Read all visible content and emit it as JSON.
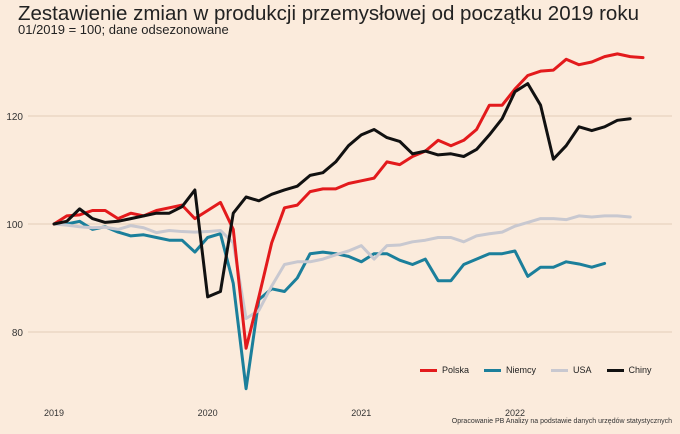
{
  "title": "Zestawienie zmian w produkcji przemysłowej od początku 2019 roku",
  "subtitle": "01/2019 = 100; dane odsezonowane",
  "source": "Opracowanie PB Analizy na podstawie danych urzędów statystycznych",
  "chart_data": {
    "type": "line",
    "xlabel": "",
    "ylabel": "",
    "ylim": [
      64,
      134
    ],
    "y_ticks": [
      80,
      100,
      120
    ],
    "x_ticks": [
      {
        "label": "2019",
        "index": 0
      },
      {
        "label": "2020",
        "index": 12
      },
      {
        "label": "2021",
        "index": 24
      },
      {
        "label": "2022",
        "index": 36
      }
    ],
    "grid": "horizontal",
    "legend_position": "bottom-right",
    "x": [
      "01/2019",
      "02/2019",
      "03/2019",
      "04/2019",
      "05/2019",
      "06/2019",
      "07/2019",
      "08/2019",
      "09/2019",
      "10/2019",
      "11/2019",
      "12/2019",
      "01/2020",
      "02/2020",
      "03/2020",
      "04/2020",
      "05/2020",
      "06/2020",
      "07/2020",
      "08/2020",
      "09/2020",
      "10/2020",
      "11/2020",
      "12/2020",
      "01/2021",
      "02/2021",
      "03/2021",
      "04/2021",
      "05/2021",
      "06/2021",
      "07/2021",
      "08/2021",
      "09/2021",
      "10/2021",
      "11/2021",
      "12/2021",
      "01/2022",
      "02/2022",
      "03/2022",
      "04/2022",
      "05/2022",
      "06/2022",
      "07/2022",
      "08/2022",
      "09/2022",
      "10/2022",
      "11/2022"
    ],
    "series": [
      {
        "name": "Polska",
        "color": "#e31a1c",
        "values": [
          100,
          101.5,
          101.7,
          102.5,
          102.5,
          101,
          102,
          101.5,
          102.5,
          103,
          103.5,
          101,
          102.5,
          104,
          99,
          77,
          86.5,
          96.5,
          103,
          103.5,
          106,
          106.5,
          106.5,
          107.5,
          108,
          108.5,
          111.5,
          111,
          112.5,
          113.5,
          115.5,
          114.5,
          115.5,
          117.5,
          122,
          122,
          125,
          127.5,
          128.3,
          128.5,
          130.5,
          129.5,
          130,
          131,
          131.5,
          131,
          130.8
        ]
      },
      {
        "name": "Niemcy",
        "color": "#1b7f9b",
        "values": [
          100,
          100,
          100.5,
          99,
          99.5,
          98.5,
          97.8,
          98,
          97.5,
          97,
          97,
          94.8,
          97.5,
          98.2,
          89,
          69.5,
          86,
          88,
          87.5,
          90,
          94.5,
          94.8,
          94.5,
          94,
          93,
          94.5,
          94.5,
          93.3,
          92.5,
          93.5,
          89.5,
          89.5,
          92.5,
          93.5,
          94.5,
          94.5,
          95,
          90.3,
          92,
          92,
          93,
          92.6,
          92,
          92.7,
          null,
          null,
          null
        ]
      },
      {
        "name": "USA",
        "color": "#c8c8d0",
        "values": [
          100,
          99.8,
          99.5,
          99.3,
          99.4,
          99,
          99.7,
          99.3,
          98.4,
          98.8,
          98.6,
          98.5,
          98.6,
          98.8,
          96.5,
          82.5,
          84,
          88.5,
          92.5,
          93,
          93,
          93.5,
          94.3,
          95,
          96,
          93.5,
          96,
          96.1,
          96.7,
          97,
          97.5,
          97.5,
          96.7,
          97.8,
          98.2,
          98.5,
          99.6,
          100.3,
          101,
          101,
          100.8,
          101.5,
          101.3,
          101.5,
          101.5,
          101.3,
          null
        ]
      },
      {
        "name": "Chiny",
        "color": "#111111",
        "values": [
          100,
          100.5,
          102.8,
          101,
          100.3,
          100.5,
          101,
          101.5,
          102,
          102,
          103.2,
          106.3,
          86.5,
          87.5,
          102,
          105,
          104.3,
          105.5,
          106.3,
          107,
          109,
          109.5,
          111.5,
          114.5,
          116.5,
          117.5,
          116,
          115.3,
          113,
          113.5,
          112.8,
          113,
          112.5,
          113.8,
          116.5,
          119.5,
          124.5,
          126,
          122,
          112,
          114.5,
          118,
          117.3,
          118,
          119.2,
          119.5,
          null
        ]
      }
    ]
  }
}
